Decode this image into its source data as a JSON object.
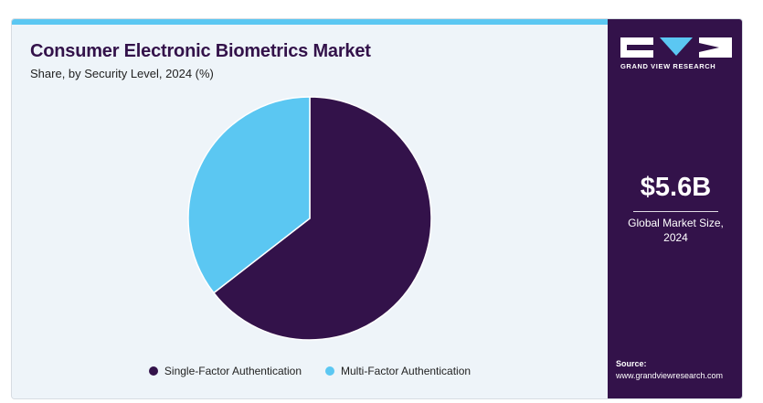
{
  "header": {
    "title": "Consumer Electronic Biometrics Market",
    "subtitle": "Share, by Security Level, 2024 (%)"
  },
  "chart_data": {
    "type": "pie",
    "title": "Consumer Electronic Biometrics Market",
    "subtitle": "Share, by Security Level, 2024 (%)",
    "legend_position": "bottom",
    "slices": [
      {
        "name": "Single-Factor Authentication",
        "value": 64.5,
        "color": "#33124a"
      },
      {
        "name": "Multi-Factor Authentication",
        "value": 35.5,
        "color": "#5bc7f2"
      }
    ]
  },
  "sidebar": {
    "brand": "GRAND VIEW RESEARCH",
    "market_size_value": "$5.6B",
    "market_size_label_line1": "Global Market Size,",
    "market_size_label_line2": "2024",
    "source_label": "Source:",
    "source_url": "www.grandviewresearch.com"
  },
  "colors": {
    "brand_purple": "#33124a",
    "accent_blue": "#5bc7f2",
    "panel_bg": "#eef4f9"
  }
}
